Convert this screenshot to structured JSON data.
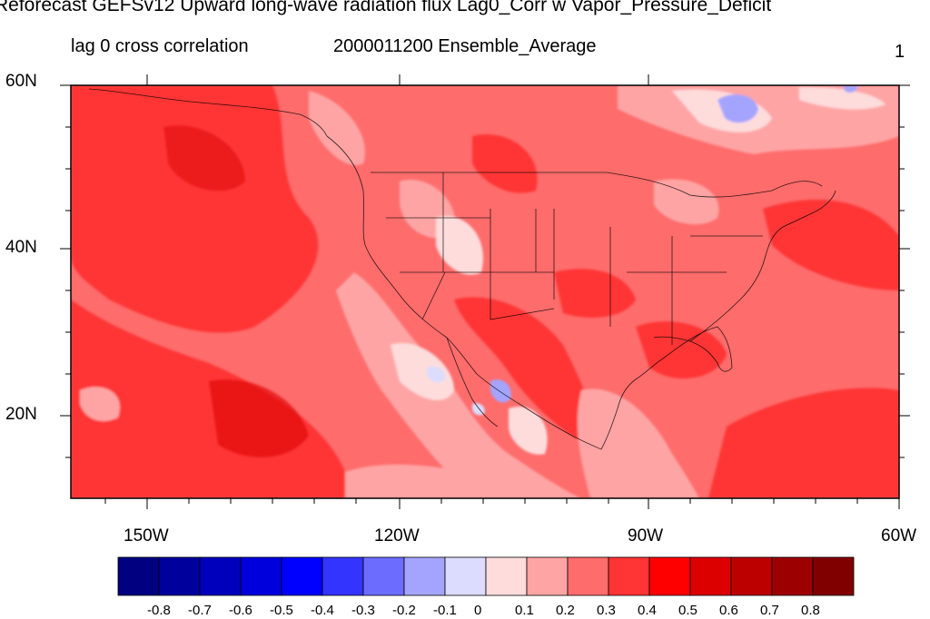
{
  "title": "Reforecast GEFSv12 Upward long-wave radiation flux Lag0_Corr w Vapor_Pressure_Deficit",
  "subtitle_left": "lag 0 cross correlation",
  "subtitle_center": "2000011200 Ensemble_Average",
  "subtitle_right": "1",
  "map": {
    "region": "North America and eastern Pacific",
    "lon_range": [
      -160,
      -60
    ],
    "lat_range": [
      10,
      60
    ],
    "lat_ticks": [
      "60N",
      "40N",
      "20N"
    ],
    "lon_ticks": [
      "150W",
      "120W",
      "90W",
      "60W"
    ],
    "dominant_value": "0.3 to 0.5 (positive correlation)"
  },
  "colorbar": {
    "labels": [
      "-0.8",
      "-0.7",
      "-0.6",
      "-0.5",
      "-0.4",
      "-0.3",
      "-0.2",
      "-0.1",
      "0",
      "0.1",
      "0.2",
      "0.3",
      "0.4",
      "0.5",
      "0.6",
      "0.7",
      "0.8"
    ],
    "colors": [
      "#000080",
      "#00009c",
      "#0000bc",
      "#0000dc",
      "#0000ff",
      "#3434ff",
      "#6c6cff",
      "#a4a4ff",
      "#dcdcff",
      "#ffdcdc",
      "#ffa4a4",
      "#ff6c6c",
      "#ff3434",
      "#ff0000",
      "#dc0000",
      "#bc0000",
      "#9c0000",
      "#800000"
    ]
  }
}
